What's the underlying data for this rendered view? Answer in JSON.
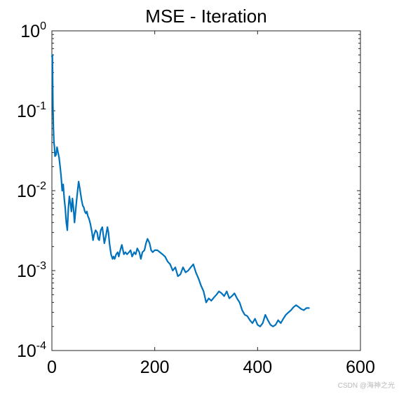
{
  "chart_data": {
    "type": "line",
    "title": "MSE - Iteration",
    "xlabel": "",
    "ylabel": "",
    "xlim": [
      0,
      600
    ],
    "ylim": [
      0.0001,
      1
    ],
    "yscale": "log",
    "grid": false,
    "legend": "none",
    "x_ticks": [
      0,
      200,
      400,
      600
    ],
    "x_tick_labels": [
      "0",
      "200",
      "400",
      "600"
    ],
    "y_ticks": [
      0.0001,
      0.001,
      0.01,
      0.1,
      1
    ],
    "y_tick_labels": [
      {
        "base": "10",
        "exp": "-4"
      },
      {
        "base": "10",
        "exp": "-3"
      },
      {
        "base": "10",
        "exp": "-2"
      },
      {
        "base": "10",
        "exp": "-1"
      },
      {
        "base": "10",
        "exp": "0"
      }
    ],
    "series": [
      {
        "color": "#0072BD",
        "x": [
          0,
          1,
          2,
          3,
          4,
          5,
          6,
          8,
          10,
          12,
          14,
          16,
          18,
          20,
          22,
          24,
          26,
          28,
          30,
          32,
          34,
          36,
          38,
          40,
          42,
          44,
          46,
          48,
          50,
          52,
          54,
          56,
          58,
          60,
          62,
          64,
          66,
          68,
          70,
          72,
          75,
          78,
          80,
          82,
          85,
          88,
          90,
          92,
          95,
          98,
          100,
          102,
          105,
          108,
          110,
          112,
          115,
          118,
          120,
          122,
          125,
          128,
          130,
          133,
          136,
          140,
          143,
          146,
          150,
          153,
          156,
          160,
          163,
          166,
          170,
          173,
          176,
          180,
          183,
          186,
          190,
          193,
          196,
          200,
          205,
          210,
          215,
          220,
          225,
          230,
          235,
          240,
          245,
          250,
          255,
          260,
          265,
          270,
          275,
          280,
          285,
          290,
          295,
          300,
          305,
          310,
          315,
          320,
          325,
          330,
          335,
          340,
          345,
          350,
          355,
          360,
          365,
          370,
          375,
          380,
          385,
          390,
          395,
          400,
          405,
          410,
          415,
          420,
          425,
          430,
          435,
          440,
          445,
          450,
          455,
          460,
          465,
          470,
          475,
          480,
          485,
          490,
          495,
          500
        ],
        "y": [
          0.48,
          0.5,
          0.12,
          0.06,
          0.04,
          0.035,
          0.027,
          0.028,
          0.035,
          0.03,
          0.026,
          0.02,
          0.015,
          0.01,
          0.012,
          0.008,
          0.006,
          0.004,
          0.0032,
          0.006,
          0.0085,
          0.007,
          0.0055,
          0.008,
          0.006,
          0.004,
          0.0055,
          0.0075,
          0.01,
          0.013,
          0.011,
          0.009,
          0.0075,
          0.0065,
          0.0062,
          0.0055,
          0.0052,
          0.0055,
          0.0048,
          0.0045,
          0.0038,
          0.003,
          0.0024,
          0.0028,
          0.0032,
          0.003,
          0.0025,
          0.0024,
          0.0032,
          0.0035,
          0.0028,
          0.0022,
          0.0027,
          0.0035,
          0.003,
          0.0022,
          0.0016,
          0.0014,
          0.0015,
          0.0014,
          0.0016,
          0.0017,
          0.0015,
          0.0018,
          0.0021,
          0.0016,
          0.0017,
          0.0016,
          0.0017,
          0.0018,
          0.0015,
          0.0017,
          0.0016,
          0.0019,
          0.0017,
          0.0014,
          0.0017,
          0.0018,
          0.0022,
          0.0025,
          0.0022,
          0.0018,
          0.0017,
          0.0018,
          0.0018,
          0.0017,
          0.0016,
          0.0015,
          0.0013,
          0.0012,
          0.001,
          0.0011,
          0.00085,
          0.0009,
          0.0011,
          0.00095,
          0.001,
          0.0011,
          0.0012,
          0.00095,
          0.0008,
          0.00065,
          0.00055,
          0.0004,
          0.00045,
          0.00042,
          0.00046,
          0.0005,
          0.00055,
          0.00052,
          0.00048,
          0.00055,
          0.00045,
          0.00048,
          0.00052,
          0.00045,
          0.0004,
          0.00032,
          0.00028,
          0.00027,
          0.00024,
          0.00022,
          0.00025,
          0.00021,
          0.0002,
          0.00022,
          0.00028,
          0.00024,
          0.00021,
          0.0002,
          0.00021,
          0.00024,
          0.00022,
          0.00025,
          0.00028,
          0.0003,
          0.00032,
          0.00035,
          0.00037,
          0.00035,
          0.00033,
          0.00032,
          0.00034,
          0.00034
        ]
      }
    ]
  },
  "watermark": "CSDN @海神之光"
}
